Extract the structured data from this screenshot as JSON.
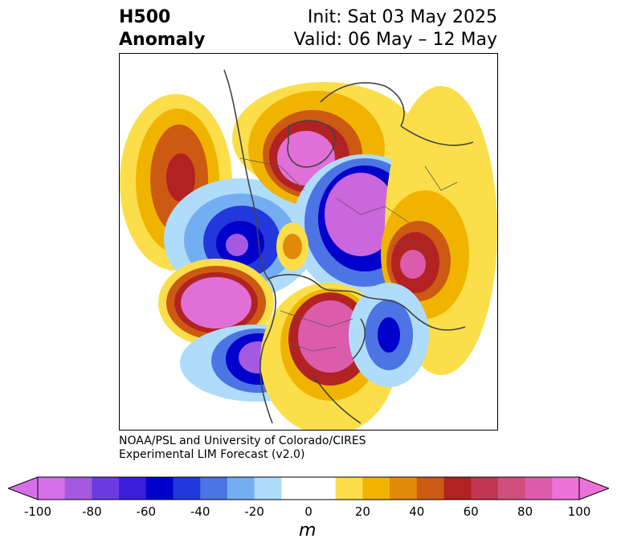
{
  "header": {
    "title_line1": "H500",
    "title_line2": "Anomaly",
    "init_text": "Init: Sat 03 May 2025",
    "valid_text": "Valid: 06 May – 12 May"
  },
  "credit": {
    "line1": "NOAA/PSL and University of Colorado/CIRES",
    "line2": "Experimental LIM Forecast (v2.0)"
  },
  "colorbar": {
    "unit": "m",
    "ticks": [
      "-100",
      "-80",
      "-60",
      "-40",
      "-20",
      "0",
      "20",
      "40",
      "60",
      "80",
      "100"
    ],
    "colors": [
      "#d670e8",
      "#a45ae0",
      "#6a3be0",
      "#3a1ed8",
      "#0000cc",
      "#2238dd",
      "#4c74e4",
      "#74aef2",
      "#aedcfa",
      "#ffffff",
      "#ffffff",
      "#fcde4a",
      "#f0b400",
      "#e08a08",
      "#cc5a12",
      "#b22222",
      "#c23552",
      "#cf4e7c",
      "#dc5cac",
      "#ec72d8"
    ],
    "extend_low_color": "#d670e8",
    "extend_high_color": "#ec72d8"
  },
  "map": {
    "projection": "North Polar Stereographic",
    "variable": "500 hPa geopotential height anomaly",
    "colors": {
      "neg_strong": "#cc66dd",
      "neg_deep": "#0000cc",
      "neg_mid": "#4c74e4",
      "neg_light": "#aedcfa",
      "pos_light": "#fcde4a",
      "pos_mid": "#f0b400",
      "pos_deep": "#b22222",
      "pos_strong": "#e070d8"
    }
  }
}
